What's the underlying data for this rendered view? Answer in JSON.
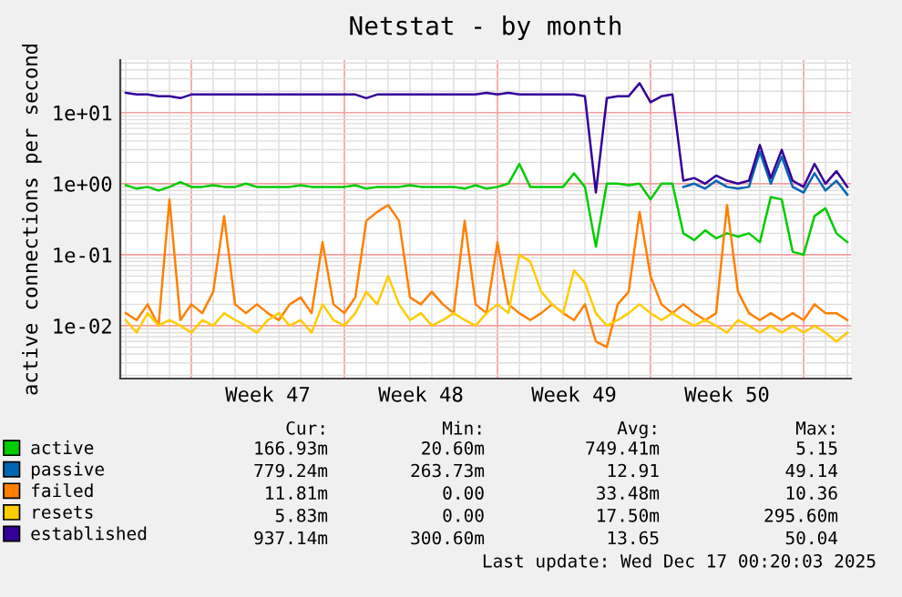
{
  "chart_data": {
    "type": "line",
    "title": "Netstat - by month",
    "ylabel": "active connections per second",
    "x": [
      "2025-11-14T00:00",
      "2025-11-14T12:00",
      "2025-11-15T00:00",
      "2025-11-15T12:00",
      "2025-11-16T00:00",
      "2025-11-16T12:00",
      "2025-11-17T00:00",
      "2025-11-17T12:00",
      "2025-11-18T00:00",
      "2025-11-18T12:00",
      "2025-11-19T00:00",
      "2025-11-19T12:00",
      "2025-11-20T00:00",
      "2025-11-20T12:00",
      "2025-11-21T00:00",
      "2025-11-21T12:00",
      "2025-11-22T00:00",
      "2025-11-22T12:00",
      "2025-11-23T00:00",
      "2025-11-23T12:00",
      "2025-11-24T00:00",
      "2025-11-24T12:00",
      "2025-11-25T00:00",
      "2025-11-25T12:00",
      "2025-11-26T00:00",
      "2025-11-26T12:00",
      "2025-11-27T00:00",
      "2025-11-27T12:00",
      "2025-11-28T00:00",
      "2025-11-28T12:00",
      "2025-11-29T00:00",
      "2025-11-29T12:00",
      "2025-11-30T00:00",
      "2025-11-30T12:00",
      "2025-12-01T00:00",
      "2025-12-01T12:00",
      "2025-12-02T00:00",
      "2025-12-02T12:00",
      "2025-12-03T00:00",
      "2025-12-03T12:00",
      "2025-12-04T00:00",
      "2025-12-04T12:00",
      "2025-12-05T00:00",
      "2025-12-05T12:00",
      "2025-12-06T00:00",
      "2025-12-06T12:00",
      "2025-12-07T00:00",
      "2025-12-07T12:00",
      "2025-12-08T00:00",
      "2025-12-08T12:00",
      "2025-12-09T00:00",
      "2025-12-09T12:00",
      "2025-12-10T00:00",
      "2025-12-10T12:00",
      "2025-12-11T00:00",
      "2025-12-11T12:00",
      "2025-12-12T00:00",
      "2025-12-12T12:00",
      "2025-12-13T00:00",
      "2025-12-13T12:00",
      "2025-12-14T00:00",
      "2025-12-14T12:00",
      "2025-12-15T00:00",
      "2025-12-15T12:00",
      "2025-12-16T00:00",
      "2025-12-16T12:00",
      "2025-12-17T00:00"
    ],
    "series": [
      {
        "name": "active",
        "color": "#00cc00",
        "values": [
          0.95,
          0.85,
          0.9,
          0.8,
          0.9,
          1.05,
          0.9,
          0.9,
          0.95,
          0.9,
          0.9,
          1.0,
          0.9,
          0.9,
          0.9,
          0.9,
          0.95,
          0.9,
          0.9,
          0.9,
          0.9,
          0.95,
          0.85,
          0.9,
          0.9,
          0.9,
          0.95,
          0.9,
          0.9,
          0.9,
          0.9,
          0.85,
          0.95,
          0.85,
          0.9,
          1.0,
          1.9,
          0.9,
          0.9,
          0.9,
          0.9,
          1.4,
          0.9,
          0.13,
          1.0,
          1.0,
          0.95,
          1.0,
          0.6,
          1.0,
          1.0,
          0.2,
          0.16,
          0.22,
          0.17,
          0.2,
          0.18,
          0.2,
          0.15,
          0.65,
          0.6,
          0.11,
          0.1,
          0.35,
          0.45,
          0.2,
          0.15
        ]
      },
      {
        "name": "passive",
        "color": "#0066b3",
        "values": [
          null,
          null,
          null,
          null,
          null,
          null,
          null,
          null,
          null,
          null,
          null,
          null,
          null,
          null,
          null,
          null,
          null,
          null,
          null,
          null,
          null,
          null,
          null,
          null,
          null,
          null,
          null,
          null,
          null,
          null,
          null,
          null,
          null,
          null,
          null,
          null,
          null,
          null,
          null,
          null,
          null,
          null,
          null,
          null,
          null,
          null,
          null,
          null,
          null,
          null,
          null,
          0.9,
          1.0,
          0.85,
          1.1,
          0.9,
          0.85,
          0.9,
          2.8,
          1.0,
          2.4,
          0.9,
          0.75,
          1.4,
          0.8,
          1.1,
          0.7
        ]
      },
      {
        "name": "failed",
        "color": "#ff8000",
        "values": [
          0.015,
          0.012,
          0.02,
          0.01,
          0.6,
          0.012,
          0.02,
          0.015,
          0.03,
          0.35,
          0.02,
          0.015,
          0.02,
          0.015,
          0.012,
          0.02,
          0.025,
          0.015,
          0.15,
          0.02,
          0.015,
          0.025,
          0.3,
          0.4,
          0.5,
          0.3,
          0.025,
          0.02,
          0.03,
          0.02,
          0.015,
          0.3,
          0.02,
          0.015,
          0.15,
          0.02,
          0.015,
          0.012,
          0.015,
          0.02,
          0.015,
          0.012,
          0.02,
          0.006,
          0.005,
          0.02,
          0.03,
          0.4,
          0.05,
          0.02,
          0.015,
          0.02,
          0.015,
          0.012,
          0.015,
          0.5,
          0.03,
          0.015,
          0.012,
          0.015,
          0.012,
          0.015,
          0.012,
          0.02,
          0.015,
          0.015,
          0.012
        ]
      },
      {
        "name": "resets",
        "color": "#ffcc00",
        "values": [
          0.012,
          0.008,
          0.015,
          0.01,
          0.012,
          0.01,
          0.008,
          0.012,
          0.01,
          0.015,
          0.012,
          0.01,
          0.008,
          0.012,
          0.015,
          0.01,
          0.012,
          0.008,
          0.02,
          0.012,
          0.01,
          0.015,
          0.03,
          0.02,
          0.05,
          0.02,
          0.012,
          0.015,
          0.01,
          0.012,
          0.015,
          0.012,
          0.01,
          0.015,
          0.02,
          0.015,
          0.1,
          0.08,
          0.03,
          0.02,
          0.015,
          0.06,
          0.04,
          0.015,
          0.01,
          0.012,
          0.015,
          0.02,
          0.015,
          0.012,
          0.015,
          0.012,
          0.01,
          0.012,
          0.01,
          0.008,
          0.012,
          0.01,
          0.008,
          0.01,
          0.008,
          0.01,
          0.008,
          0.01,
          0.008,
          0.006,
          0.008
        ]
      },
      {
        "name": "established",
        "color": "#330099",
        "values": [
          19,
          18,
          18,
          17,
          17,
          16,
          18,
          18,
          18,
          18,
          18,
          18,
          18,
          18,
          18,
          18,
          18,
          18,
          18,
          18,
          18,
          18,
          16,
          18,
          18,
          18,
          18,
          18,
          18,
          18,
          18,
          18,
          18,
          19,
          18,
          19,
          18,
          18,
          18,
          18,
          18,
          18,
          17,
          0.75,
          16,
          17,
          17,
          26,
          14,
          17,
          18,
          1.1,
          1.2,
          1.0,
          1.3,
          1.1,
          1.0,
          1.1,
          3.5,
          1.2,
          3.0,
          1.1,
          0.9,
          1.9,
          1.0,
          1.5,
          0.9
        ]
      }
    ],
    "log": "y",
    "ylim": [
      0.0018,
      55
    ],
    "yticks": [
      {
        "value": 0.01,
        "label": "1e-02"
      },
      {
        "value": 0.1,
        "label": "1e-01"
      },
      {
        "value": 1,
        "label": "1e+00"
      },
      {
        "value": 10,
        "label": "1e+01"
      }
    ],
    "xlim": [
      "2025-11-13T18:00",
      "2025-12-17T04:00"
    ],
    "xticks": [
      {
        "value": "2025-11-17T00:00",
        "label": null
      },
      {
        "value": "2025-11-20T12:00",
        "label": "Week 47"
      },
      {
        "value": "2025-11-24T00:00",
        "label": null
      },
      {
        "value": "2025-11-27T12:00",
        "label": "Week 48"
      },
      {
        "value": "2025-12-01T00:00",
        "label": null
      },
      {
        "value": "2025-12-04T12:00",
        "label": "Week 49"
      },
      {
        "value": "2025-12-08T00:00",
        "label": null
      },
      {
        "value": "2025-12-11T12:00",
        "label": "Week 50"
      },
      {
        "value": "2025-12-15T00:00",
        "label": null
      }
    ],
    "grid": true,
    "legend": "bottom left",
    "marker": "none",
    "line_style": "solid",
    "annotations": [
      "Cur:",
      "Min:",
      "Avg:",
      "Max:",
      "166.93m",
      "20.60m",
      "749.41m",
      "5.15",
      "779.24m",
      "263.73m",
      "12.91",
      "49.14",
      "11.81m",
      "0.00",
      "33.48m",
      "10.36",
      "5.83m",
      "0.00",
      "17.50m",
      "295.60m",
      "937.14m",
      "300.60m",
      "13.65",
      "50.04",
      "Last update: Wed Dec 17 00:20:03 2025"
    ]
  }
}
